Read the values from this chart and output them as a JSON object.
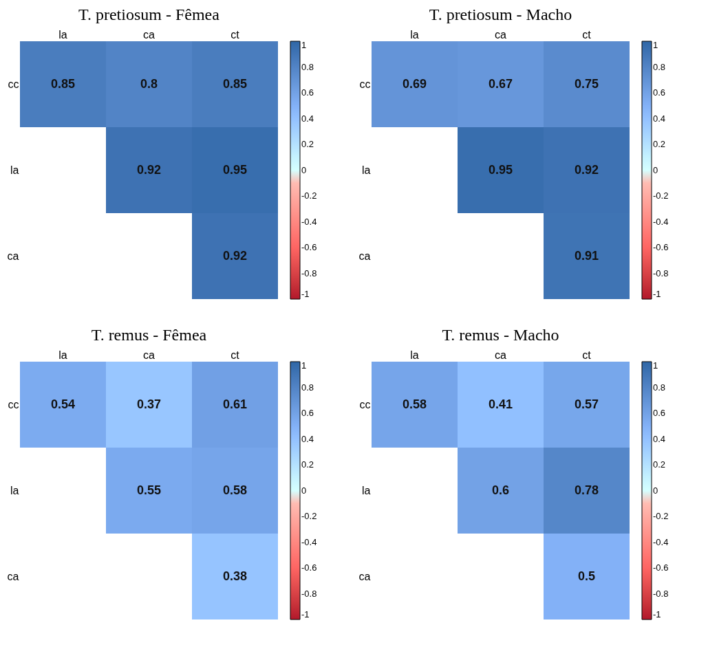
{
  "chart_data": [
    {
      "type": "heatmap",
      "title": "T. pretiosum - Fêmea",
      "categories": [
        "la",
        "ca",
        "ct"
      ],
      "y_categories": [
        "cc",
        "la",
        "ca"
      ],
      "cells": [
        [
          0.85,
          0.8,
          0.85
        ],
        [
          null,
          0.92,
          0.95
        ],
        [
          null,
          null,
          0.92
        ]
      ],
      "clim": [
        -1,
        1
      ],
      "cticks": [
        -1,
        -0.8,
        -0.6,
        -0.4,
        -0.2,
        0,
        0.2,
        0.4,
        0.6,
        0.8,
        1
      ],
      "data_labels": true
    },
    {
      "type": "heatmap",
      "title": "T. pretiosum - Macho",
      "categories": [
        "la",
        "ca",
        "ct"
      ],
      "y_categories": [
        "cc",
        "la",
        "ca"
      ],
      "cells": [
        [
          0.69,
          0.67,
          0.75
        ],
        [
          null,
          0.95,
          0.92
        ],
        [
          null,
          null,
          0.91
        ]
      ],
      "clim": [
        -1,
        1
      ],
      "cticks": [
        -1,
        -0.8,
        -0.6,
        -0.4,
        -0.2,
        0,
        0.2,
        0.4,
        0.6,
        0.8,
        1
      ],
      "data_labels": true
    },
    {
      "type": "heatmap",
      "title": "T. remus - Fêmea",
      "categories": [
        "la",
        "ca",
        "ct"
      ],
      "y_categories": [
        "cc",
        "la",
        "ca"
      ],
      "cells": [
        [
          0.54,
          0.37,
          0.61
        ],
        [
          null,
          0.55,
          0.58
        ],
        [
          null,
          null,
          0.38
        ]
      ],
      "clim": [
        -1,
        1
      ],
      "cticks": [
        -1,
        -0.8,
        -0.6,
        -0.4,
        -0.2,
        0,
        0.2,
        0.4,
        0.6,
        0.8,
        1
      ],
      "data_labels": true
    },
    {
      "type": "heatmap",
      "title": "T. remus - Macho",
      "categories": [
        "la",
        "ca",
        "ct"
      ],
      "y_categories": [
        "cc",
        "la",
        "ca"
      ],
      "cells": [
        [
          0.58,
          0.41,
          0.57
        ],
        [
          null,
          0.6,
          0.78
        ],
        [
          null,
          null,
          0.5
        ]
      ],
      "clim": [
        -1,
        1
      ],
      "cticks": [
        -1,
        -0.8,
        -0.6,
        -0.4,
        -0.2,
        0,
        0.2,
        0.4,
        0.6,
        0.8,
        1
      ],
      "data_labels": true
    }
  ]
}
